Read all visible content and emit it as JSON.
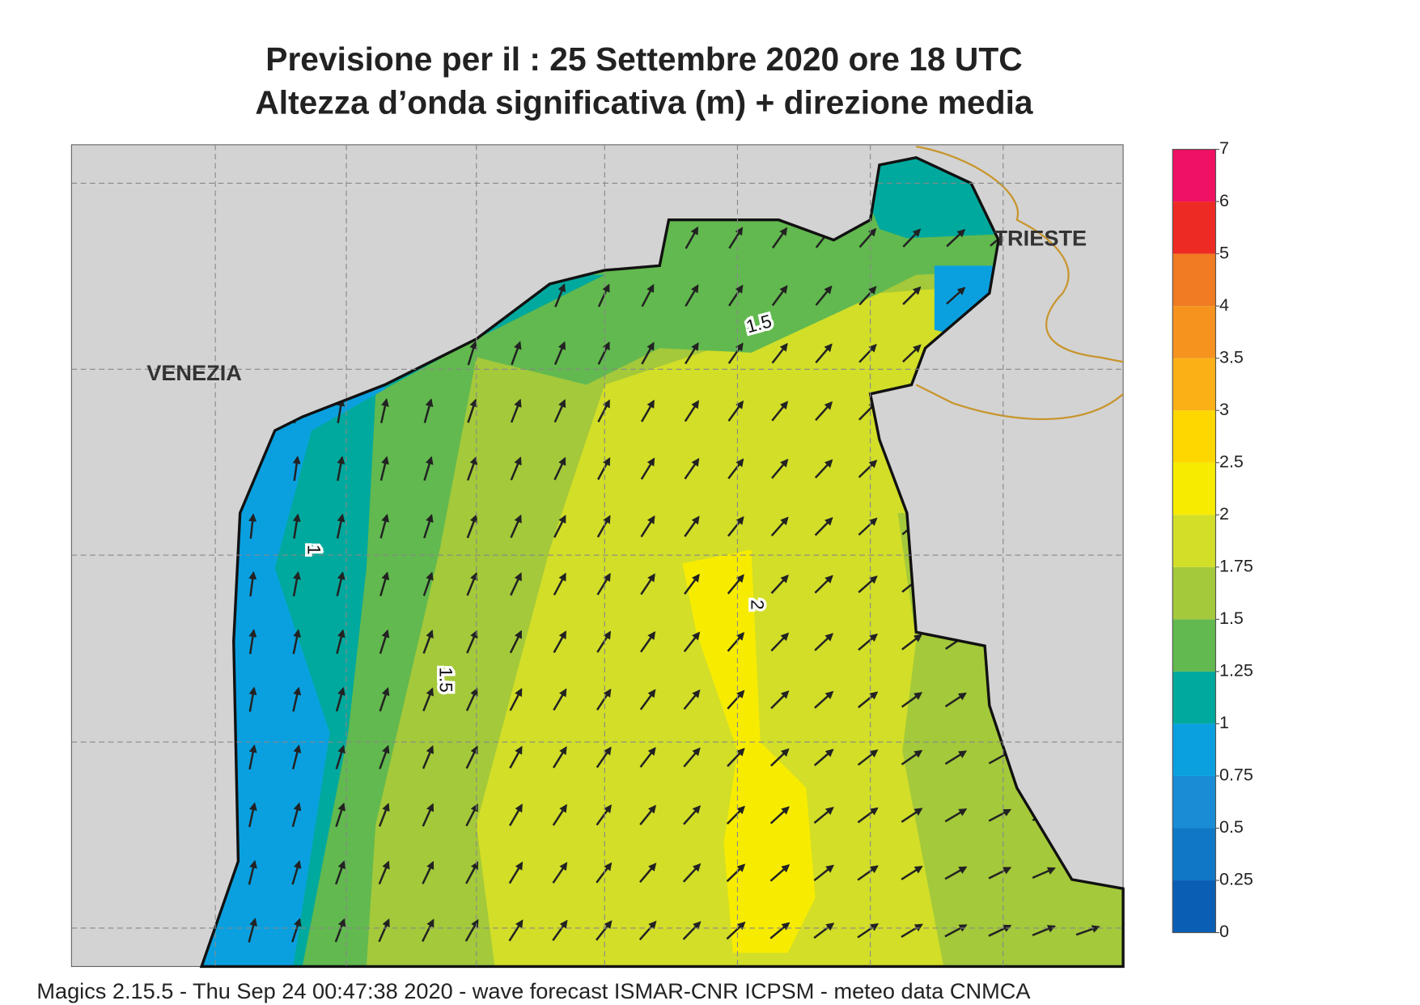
{
  "header": {
    "title": [
      "Previsione per il  :  25 Settembre 2020   ore 18 UTC",
      "Altezza d’onda significativa (m) + direzione media"
    ]
  },
  "map": {
    "places": [
      "VENEZIA",
      "TRIESTE"
    ],
    "contour_labels": [
      1.5,
      1,
      1.5,
      2
    ]
  },
  "legend": {
    "ticks": [
      0,
      0.25,
      0.5,
      0.75,
      1,
      1.25,
      1.5,
      1.75,
      2,
      2.5,
      3,
      3.5,
      4,
      5,
      6,
      7
    ],
    "colors": [
      "#0a5fb4",
      "#0f78c6",
      "#1a8cd6",
      "#0aa0e0",
      "#00a99d",
      "#62b94f",
      "#a4c93a",
      "#d2de28",
      "#f7ec00",
      "#fed700",
      "#fbb116",
      "#f6931e",
      "#f07b22",
      "#ee2a24",
      "#ee1164"
    ]
  },
  "footer": "Magics 2.15.5 - Thu Sep 24 00:47:38 2020 - wave forecast  ISMAR-CNR  ICPSM - meteo data   CNMCA"
}
